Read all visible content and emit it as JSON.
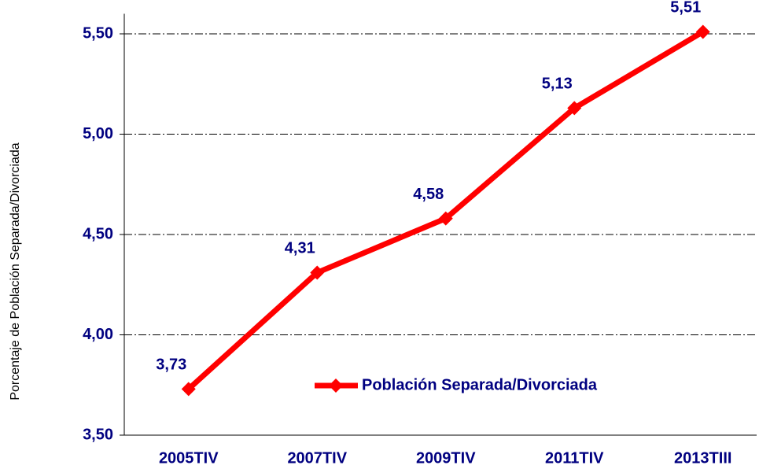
{
  "chart_data": {
    "type": "line",
    "y_label": "Porcentaje de Población Separada/Divorciada",
    "categories": [
      "2005TIV",
      "2007TIV",
      "2009TIV",
      "2011TIV",
      "2013TIII"
    ],
    "series": [
      {
        "name": "Población Separada/Divorciada",
        "color": "#ff0000",
        "values": [
          3.73,
          4.31,
          4.58,
          5.13,
          5.51
        ],
        "value_labels": [
          "3,73",
          "4,31",
          "4,58",
          "5,13",
          "5,51"
        ]
      }
    ],
    "ylim": [
      3.5,
      5.6
    ],
    "yticks": [
      {
        "value": 3.5,
        "label": "3,50"
      },
      {
        "value": 4.0,
        "label": "4,00"
      },
      {
        "value": 4.5,
        "label": "4,50"
      },
      {
        "value": 5.0,
        "label": "5,00"
      },
      {
        "value": 5.5,
        "label": "5,50"
      }
    ],
    "grid": true,
    "legend": "bottom"
  }
}
